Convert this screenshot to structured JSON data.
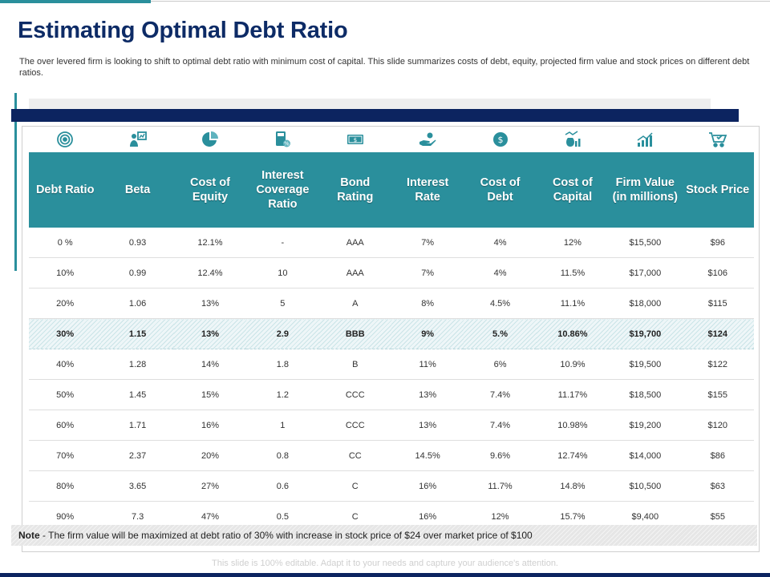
{
  "title": "Estimating Optimal Debt Ratio",
  "subtitle": "The over levered firm is looking to shift to optimal debt ratio with minimum cost of capital. This slide summarizes costs of debt, equity, projected firm value and stock prices on different debt ratios.",
  "colors": {
    "teal": "#2a8f9c",
    "navy": "#0c2460",
    "title": "#0d2b66"
  },
  "icons": [
    "target-icon",
    "presentation-person-icon",
    "pie-chart-icon",
    "calculator-icon",
    "banknote-icon",
    "hand-money-icon",
    "coin-icon",
    "money-bag-chart-icon",
    "growth-chart-icon",
    "shopping-cart-icon"
  ],
  "table": {
    "headers": [
      "Debt Ratio",
      "Beta",
      "Cost of Equity",
      "Interest Coverage Ratio",
      "Bond Rating",
      "Interest Rate",
      "Cost of Debt",
      "Cost of Capital",
      "Firm Value (in millions)",
      "Stock Price"
    ],
    "rows": [
      [
        "0 %",
        "0.93",
        "12.1%",
        "-",
        "AAA",
        "7%",
        "4%",
        "12%",
        "$15,500",
        "$96"
      ],
      [
        "10%",
        "0.99",
        "12.4%",
        "10",
        "AAA",
        "7%",
        "4%",
        "11.5%",
        "$17,000",
        "$106"
      ],
      [
        "20%",
        "1.06",
        "13%",
        "5",
        "A",
        "8%",
        "4.5%",
        "11.1%",
        "$18,000",
        "$115"
      ],
      [
        "30%",
        "1.15",
        "13%",
        "2.9",
        "BBB",
        "9%",
        "5.%",
        "10.86%",
        "$19,700",
        "$124"
      ],
      [
        "40%",
        "1.28",
        "14%",
        "1.8",
        "B",
        "11%",
        "6%",
        "10.9%",
        "$19,500",
        "$122"
      ],
      [
        "50%",
        "1.45",
        "15%",
        "1.2",
        "CCC",
        "13%",
        "7.4%",
        "11.17%",
        "$18,500",
        "$155"
      ],
      [
        "60%",
        "1.71",
        "16%",
        "1",
        "CCC",
        "13%",
        "7.4%",
        "10.98%",
        "$19,200",
        "$120"
      ],
      [
        "70%",
        "2.37",
        "20%",
        "0.8",
        "CC",
        "14.5%",
        "9.6%",
        "12.74%",
        "$14,000",
        "$86"
      ],
      [
        "80%",
        "3.65",
        "27%",
        "0.6",
        "C",
        "16%",
        "11.7%",
        "14.8%",
        "$10,500",
        "$63"
      ],
      [
        "90%",
        "7.3",
        "47%",
        "0.5",
        "C",
        "16%",
        "12%",
        "15.7%",
        "$9,400",
        "$55"
      ]
    ],
    "highlight_row": 3
  },
  "note": {
    "label": "Note",
    "text": " - The firm value will be maximized at debt ratio of 30% with increase in stock price of $24 over market price of $100"
  },
  "footer": "This slide is 100% editable. Adapt it to your needs and capture your audience's attention."
}
